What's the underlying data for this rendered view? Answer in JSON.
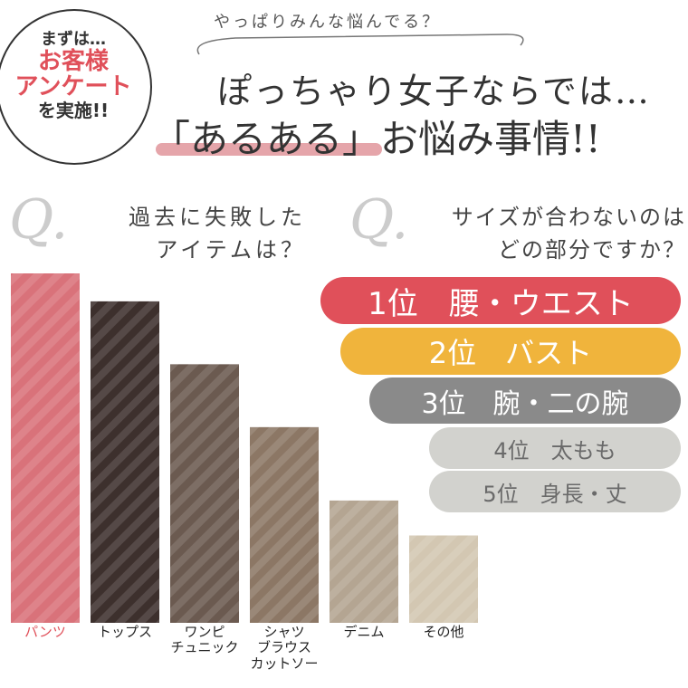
{
  "badge": {
    "lines": [
      "まずは…",
      "お客様",
      "アンケート",
      "を実施!!"
    ]
  },
  "header": {
    "subtitle": "やっぱりみんな悩んでる？",
    "title_line1": "ぽっちゃり女子ならでは…",
    "title_line2": "「あるある」お悩み事情!!"
  },
  "q1": {
    "mark": "Q.",
    "text": "過去に失敗した\nアイテムは？"
  },
  "q2": {
    "mark": "Q.",
    "text": "サイズが合わないのは\nどの部分ですか？"
  },
  "chart_data": {
    "type": "bar",
    "categories": [
      "パンツ",
      "トップス",
      "ワンピ\nチュニック",
      "シャツ\nブラウス\nカットソー",
      "デニム",
      "その他"
    ],
    "values": [
      100,
      92,
      74,
      56,
      35,
      25
    ],
    "colors": [
      "#d9727a",
      "#3d302d",
      "#6b5a50",
      "#8c7765",
      "#b4a592",
      "#d3c7b2"
    ],
    "ylim": [
      0,
      100
    ]
  },
  "ranking": [
    {
      "rank": "1位",
      "label": "腰・ウエスト",
      "color": "#e0505a",
      "text_color": "#ffffff"
    },
    {
      "rank": "2位",
      "label": "バスト",
      "color": "#f0b43c",
      "text_color": "#ffffff"
    },
    {
      "rank": "3位",
      "label": "腕・二の腕",
      "color": "#8a8a8a",
      "text_color": "#ffffff"
    },
    {
      "rank": "4位",
      "label": "太もも",
      "color": "#d2d2ce",
      "text_color": "#6a6a6a"
    },
    {
      "rank": "5位",
      "label": "身長・丈",
      "color": "#d2d2ce",
      "text_color": "#6a6a6a"
    }
  ]
}
